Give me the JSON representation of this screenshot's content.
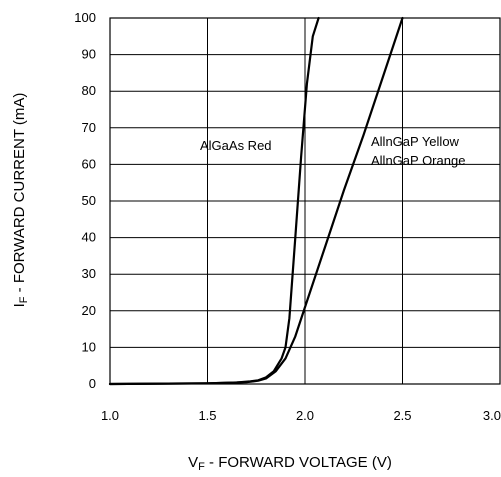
{
  "chart_data": {
    "type": "line",
    "title": "",
    "xlabel": {
      "symbol": "V",
      "subscript": "F",
      "text": " - FORWARD VOLTAGE (V)"
    },
    "ylabel": {
      "symbol": "I",
      "subscript": "F",
      "text": " - FORWARD CURRENT (mA)"
    },
    "xlim": [
      1.0,
      3.0
    ],
    "ylim": [
      0,
      100
    ],
    "x_ticks": [
      "1.0",
      "1.5",
      "2.0",
      "2.5",
      "3.0"
    ],
    "y_ticks": [
      "0",
      "10",
      "20",
      "30",
      "40",
      "50",
      "60",
      "70",
      "80",
      "90",
      "100"
    ],
    "grid": true,
    "legend": "none",
    "annotations": [
      "AlGaAs Red",
      "AllnGaP Yellow",
      "AllnGaP Orange"
    ],
    "series": [
      {
        "x": [
          1.0,
          1.5,
          1.65,
          1.72,
          1.76,
          1.8,
          1.84,
          1.88,
          1.9,
          1.92,
          1.95,
          1.98,
          2.01,
          2.04,
          2.07
        ],
        "y": [
          0,
          0.2,
          0.4,
          0.7,
          1,
          1.8,
          3.5,
          7,
          10,
          18,
          40,
          62,
          82,
          95,
          100
        ]
      },
      {
        "x": [
          1.0,
          1.5,
          1.7,
          1.76,
          1.8,
          1.85,
          1.9,
          1.95,
          2.0,
          2.1,
          2.2,
          2.3,
          2.4,
          2.5
        ],
        "y": [
          0,
          0.2,
          0.5,
          0.9,
          1.5,
          3.5,
          7,
          13,
          21,
          37,
          53,
          68,
          84,
          100
        ]
      }
    ]
  }
}
